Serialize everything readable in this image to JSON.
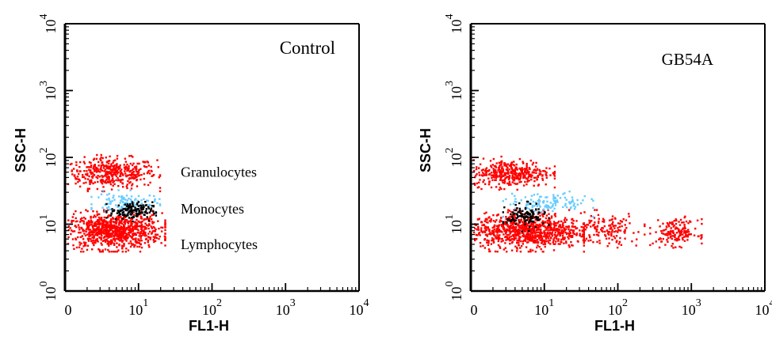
{
  "chart_data": [
    {
      "type": "scatter",
      "title": "Control",
      "xlabel": "FL1-H",
      "ylabel": "SSC-H",
      "x_scale": "log",
      "y_scale": "log",
      "xlim": [
        1,
        10000
      ],
      "ylim": [
        1,
        10000
      ],
      "x_ticks": [
        {
          "value": 1,
          "label": "0",
          "exp": ""
        },
        {
          "value": 10,
          "label": "10",
          "exp": "1"
        },
        {
          "value": 100,
          "label": "10",
          "exp": "2"
        },
        {
          "value": 1000,
          "label": "10",
          "exp": "3"
        },
        {
          "value": 10000,
          "label": "10",
          "exp": "4"
        }
      ],
      "y_ticks": [
        {
          "value": 1,
          "label": "10",
          "exp": "0"
        },
        {
          "value": 10,
          "label": "10",
          "exp": "1"
        },
        {
          "value": 100,
          "label": "10",
          "exp": "2"
        },
        {
          "value": 1000,
          "label": "10",
          "exp": "3"
        },
        {
          "value": 10000,
          "label": "10",
          "exp": "4"
        }
      ],
      "annotations": [
        {
          "text": "Granulocytes",
          "y": 60
        },
        {
          "text": "Monocytes",
          "y": 17
        },
        {
          "text": "Lymphocytes",
          "y": 5
        }
      ],
      "clusters": [
        {
          "color": "#ff0000",
          "x_range": [
            1,
            17
          ],
          "y_range": [
            36,
            100
          ],
          "n": 420
        },
        {
          "color": "#ff0000",
          "x_range": [
            1,
            20
          ],
          "y_range": [
            4.5,
            15
          ],
          "n": 900
        },
        {
          "color": "#66ccff",
          "x_range": [
            2.5,
            17
          ],
          "y_range": [
            15,
            30
          ],
          "n": 120
        },
        {
          "color": "#000000",
          "x_range": [
            4,
            15
          ],
          "y_range": [
            12,
            22
          ],
          "n": 150
        }
      ]
    },
    {
      "type": "scatter",
      "title": "GB54A",
      "xlabel": "FL1-H",
      "ylabel": "SSC-H",
      "x_scale": "log",
      "y_scale": "log",
      "xlim": [
        1,
        10000
      ],
      "ylim": [
        1,
        10000
      ],
      "x_ticks": [
        {
          "value": 1,
          "label": "0",
          "exp": ""
        },
        {
          "value": 10,
          "label": "10",
          "exp": "1"
        },
        {
          "value": 100,
          "label": "10",
          "exp": "2"
        },
        {
          "value": 1000,
          "label": "10",
          "exp": "3"
        },
        {
          "value": 10000,
          "label": "10",
          "exp": "4"
        }
      ],
      "y_ticks": [
        {
          "value": 1,
          "label": "10",
          "exp": "0"
        },
        {
          "value": 10,
          "label": "10",
          "exp": "1"
        },
        {
          "value": 100,
          "label": "10",
          "exp": "2"
        },
        {
          "value": 1000,
          "label": "10",
          "exp": "3"
        },
        {
          "value": 10000,
          "label": "10",
          "exp": "4"
        }
      ],
      "annotations": [],
      "clusters": [
        {
          "color": "#ff0000",
          "x_range": [
            1,
            12
          ],
          "y_range": [
            38,
            95
          ],
          "n": 380
        },
        {
          "color": "#ff0000",
          "x_range": [
            1,
            30
          ],
          "y_range": [
            4.5,
            15
          ],
          "n": 900
        },
        {
          "color": "#ff0000",
          "x_range": [
            20,
            200
          ],
          "y_range": [
            5,
            15
          ],
          "n": 160
        },
        {
          "color": "#ff0000",
          "x_range": [
            300,
            1200
          ],
          "y_range": [
            5,
            12
          ],
          "n": 160
        },
        {
          "color": "#66ccff",
          "x_range": [
            3,
            40
          ],
          "y_range": [
            15,
            30
          ],
          "n": 120
        },
        {
          "color": "#000000",
          "x_range": [
            3,
            10
          ],
          "y_range": [
            9,
            20
          ],
          "n": 120
        }
      ]
    }
  ]
}
